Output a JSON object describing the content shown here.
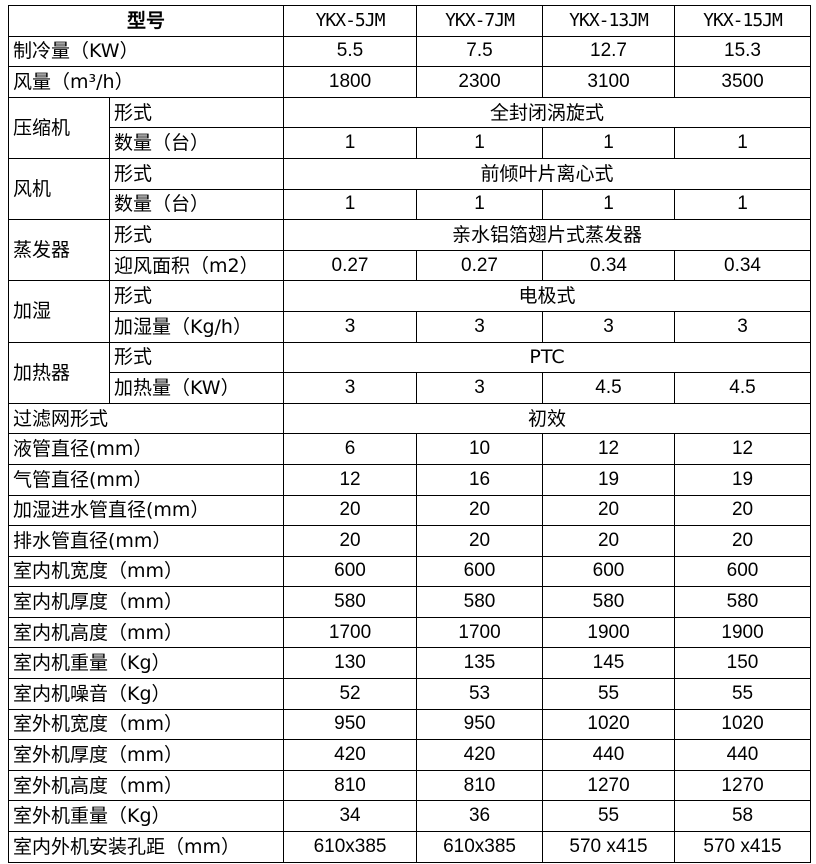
{
  "header": {
    "label": "型号",
    "models": [
      "YKX-5JM",
      "YKX-7JM",
      "YKX-13JM",
      "YKX-15JM"
    ]
  },
  "rows": [
    {
      "label": "制冷量（KW）",
      "values": [
        "5.5",
        "7.5",
        "12.7",
        "15.3"
      ]
    },
    {
      "label": "风量（m³/h）",
      "values": [
        "1800",
        "2300",
        "3100",
        "3500"
      ]
    },
    {
      "group": "压缩机",
      "sub": [
        {
          "label": "形式",
          "merged": "全封闭涡旋式"
        },
        {
          "label": "数量（台）",
          "values": [
            "1",
            "1",
            "1",
            "1"
          ]
        }
      ]
    },
    {
      "group": "风机",
      "sub": [
        {
          "label": "形式",
          "merged": "前倾叶片离心式"
        },
        {
          "label": "数量（台）",
          "values": [
            "1",
            "1",
            "1",
            "1"
          ]
        }
      ]
    },
    {
      "group": "蒸发器",
      "sub": [
        {
          "label": "形式",
          "merged": "亲水铝箔翅片式蒸发器"
        },
        {
          "label": "迎风面积（m2）",
          "values": [
            "0.27",
            "0.27",
            "0.34",
            "0.34"
          ]
        }
      ]
    },
    {
      "group": "加湿",
      "sub": [
        {
          "label": "形式",
          "merged": "电极式"
        },
        {
          "label": "加湿量（Kg/h）",
          "values": [
            "3",
            "3",
            "3",
            "3"
          ]
        }
      ]
    },
    {
      "group": "加热器",
      "sub": [
        {
          "label": "形式",
          "merged": "PTC"
        },
        {
          "label": "加热量（KW）",
          "values": [
            "3",
            "3",
            "4.5",
            "4.5"
          ]
        }
      ]
    },
    {
      "label": "过滤网形式",
      "merged": "初效"
    },
    {
      "label": "液管直径(mm）",
      "values": [
        "6",
        "10",
        "12",
        "12"
      ]
    },
    {
      "label": "气管直径(mm）",
      "values": [
        "12",
        "16",
        "19",
        "19"
      ]
    },
    {
      "label": "加湿进水管直径(mm）",
      "values": [
        "20",
        "20",
        "20",
        "20"
      ]
    },
    {
      "label": "排水管直径(mm）",
      "values": [
        "20",
        "20",
        "20",
        "20"
      ]
    },
    {
      "label": "室内机宽度（mm）",
      "values": [
        "600",
        "600",
        "600",
        "600"
      ]
    },
    {
      "label": "室内机厚度（mm）",
      "values": [
        "580",
        "580",
        "580",
        "580"
      ]
    },
    {
      "label": "室内机高度（mm）",
      "values": [
        "1700",
        "1700",
        "1900",
        "1900"
      ]
    },
    {
      "label": "室内机重量（Kg）",
      "values": [
        "130",
        "135",
        "145",
        "150"
      ]
    },
    {
      "label": "室内机噪音（Kg）",
      "values": [
        "52",
        "53",
        "55",
        "55"
      ]
    },
    {
      "label": "室外机宽度（mm）",
      "values": [
        "950",
        "950",
        "1020",
        "1020"
      ]
    },
    {
      "label": "室外机厚度（mm）",
      "values": [
        "420",
        "420",
        "440",
        "440"
      ]
    },
    {
      "label": "室外机高度（mm）",
      "values": [
        "810",
        "810",
        "1270",
        "1270"
      ]
    },
    {
      "label": "室外机重量（Kg）",
      "values": [
        "34",
        "36",
        "55",
        "58"
      ]
    },
    {
      "label": "室内外机安装孔距（mm）",
      "values": [
        "610x385",
        "610x385",
        "570 x415",
        "570 x415"
      ]
    }
  ]
}
